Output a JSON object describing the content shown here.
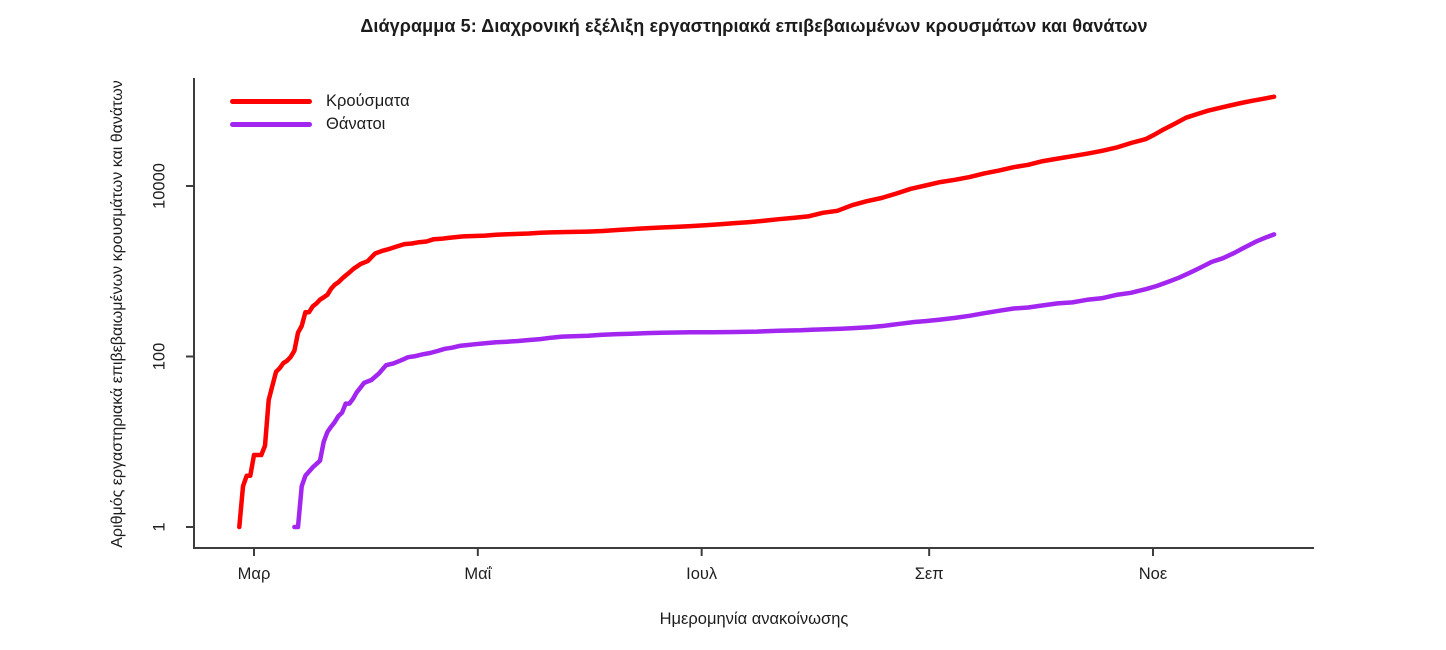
{
  "chart_data": {
    "type": "line",
    "title": "Διάγραμμα 5: Διαχρονική εξέλιξη εργαστηριακά επιβεβαιωμένων κρουσμάτων και θανάτων",
    "xlabel": "Ημερομηνία ανακοίνωσης",
    "ylabel": "Αριθμός εργαστηριακά επιβεβαιωμένων κρουσμάτων και θανάτων",
    "y_scale": "log10",
    "ylim": [
      1,
      200000
    ],
    "grid": false,
    "legend_position": "top-left",
    "x_ticks": [
      {
        "date": "03-01",
        "label": "Μαρ"
      },
      {
        "date": "05-01",
        "label": "Μαΐ"
      },
      {
        "date": "07-01",
        "label": "Ιουλ"
      },
      {
        "date": "09-01",
        "label": "Σεπ"
      },
      {
        "date": "11-01",
        "label": "Νοε"
      }
    ],
    "y_ticks": [
      {
        "value": 1,
        "label": "1"
      },
      {
        "value": 100,
        "label": "100"
      },
      {
        "value": 10000,
        "label": "10000"
      }
    ],
    "series": [
      {
        "id": "cases",
        "name": "Κρούσματα",
        "color": "#fe0000",
        "points": [
          [
            "02-26",
            1
          ],
          [
            "02-27",
            3
          ],
          [
            "02-28",
            4
          ],
          [
            "02-29",
            4
          ],
          [
            "03-01",
            7
          ],
          [
            "03-02",
            7
          ],
          [
            "03-03",
            7
          ],
          [
            "03-04",
            9
          ],
          [
            "03-05",
            31
          ],
          [
            "03-06",
            45
          ],
          [
            "03-07",
            66
          ],
          [
            "03-08",
            73
          ],
          [
            "03-09",
            84
          ],
          [
            "03-10",
            89
          ],
          [
            "03-11",
            99
          ],
          [
            "03-12",
            117
          ],
          [
            "03-13",
            190
          ],
          [
            "03-14",
            228
          ],
          [
            "03-15",
            331
          ],
          [
            "03-16",
            331
          ],
          [
            "03-17",
            387
          ],
          [
            "03-18",
            418
          ],
          [
            "03-19",
            464
          ],
          [
            "03-20",
            495
          ],
          [
            "03-21",
            530
          ],
          [
            "03-22",
            624
          ],
          [
            "03-23",
            695
          ],
          [
            "03-24",
            743
          ],
          [
            "03-25",
            821
          ],
          [
            "03-26",
            892
          ],
          [
            "03-27",
            966
          ],
          [
            "03-28",
            1061
          ],
          [
            "03-30",
            1212
          ],
          [
            "04-01",
            1314
          ],
          [
            "04-03",
            1613
          ],
          [
            "04-05",
            1735
          ],
          [
            "04-07",
            1832
          ],
          [
            "04-09",
            1955
          ],
          [
            "04-11",
            2081
          ],
          [
            "04-13",
            2114
          ],
          [
            "04-15",
            2192
          ],
          [
            "04-17",
            2235
          ],
          [
            "04-19",
            2374
          ],
          [
            "04-21",
            2401
          ],
          [
            "04-23",
            2463
          ],
          [
            "04-25",
            2517
          ],
          [
            "04-27",
            2566
          ],
          [
            "04-30",
            2591
          ],
          [
            "05-03",
            2620
          ],
          [
            "05-06",
            2678
          ],
          [
            "05-09",
            2710
          ],
          [
            "05-12",
            2744
          ],
          [
            "05-15",
            2770
          ],
          [
            "05-18",
            2834
          ],
          [
            "05-21",
            2853
          ],
          [
            "05-24",
            2876
          ],
          [
            "05-27",
            2892
          ],
          [
            "05-31",
            2915
          ],
          [
            "06-04",
            2967
          ],
          [
            "06-08",
            3049
          ],
          [
            "06-12",
            3121
          ],
          [
            "06-16",
            3203
          ],
          [
            "06-20",
            3256
          ],
          [
            "06-24",
            3310
          ],
          [
            "06-28",
            3390
          ],
          [
            "07-02",
            3458
          ],
          [
            "07-06",
            3562
          ],
          [
            "07-10",
            3672
          ],
          [
            "07-14",
            3772
          ],
          [
            "07-18",
            3910
          ],
          [
            "07-22",
            4077
          ],
          [
            "07-26",
            4227
          ],
          [
            "07-30",
            4401
          ],
          [
            "08-03",
            4855
          ],
          [
            "08-07",
            5123
          ],
          [
            "08-11",
            5947
          ],
          [
            "08-15",
            6632
          ],
          [
            "08-19",
            7222
          ],
          [
            "08-23",
            8138
          ],
          [
            "08-27",
            9280
          ],
          [
            "08-31",
            10134
          ],
          [
            "09-04",
            11124
          ],
          [
            "09-08",
            11832
          ],
          [
            "09-12",
            12734
          ],
          [
            "09-16",
            14041
          ],
          [
            "09-20",
            15142
          ],
          [
            "09-24",
            16627
          ],
          [
            "09-28",
            17707
          ],
          [
            "10-02",
            19613
          ],
          [
            "10-06",
            20947
          ],
          [
            "10-10",
            22358
          ],
          [
            "10-14",
            23947
          ],
          [
            "10-18",
            25802
          ],
          [
            "10-22",
            28216
          ],
          [
            "10-26",
            31939
          ],
          [
            "10-30",
            35510
          ],
          [
            "11-01",
            39251
          ],
          [
            "11-04",
            46400
          ],
          [
            "11-07",
            54000
          ],
          [
            "11-10",
            63300
          ],
          [
            "11-13",
            69700
          ],
          [
            "11-16",
            76400
          ],
          [
            "11-19",
            82000
          ],
          [
            "11-22",
            88000
          ],
          [
            "11-25",
            94000
          ],
          [
            "11-28",
            100000
          ],
          [
            "12-01",
            105271
          ],
          [
            "12-04",
            111537
          ]
        ]
      },
      {
        "id": "deaths",
        "name": "Θάνατοι",
        "color": "#a226f0",
        "points": [
          [
            "03-12",
            1
          ],
          [
            "03-13",
            1
          ],
          [
            "03-14",
            3
          ],
          [
            "03-15",
            4
          ],
          [
            "03-17",
            5
          ],
          [
            "03-19",
            6
          ],
          [
            "03-20",
            10
          ],
          [
            "03-21",
            13
          ],
          [
            "03-22",
            15
          ],
          [
            "03-23",
            17
          ],
          [
            "03-24",
            20
          ],
          [
            "03-25",
            22
          ],
          [
            "03-26",
            28
          ],
          [
            "03-27",
            28
          ],
          [
            "03-28",
            32
          ],
          [
            "03-29",
            38
          ],
          [
            "03-30",
            43
          ],
          [
            "03-31",
            49
          ],
          [
            "04-02",
            53
          ],
          [
            "04-04",
            63
          ],
          [
            "04-06",
            79
          ],
          [
            "04-08",
            83
          ],
          [
            "04-10",
            90
          ],
          [
            "04-12",
            98
          ],
          [
            "04-14",
            101
          ],
          [
            "04-16",
            106
          ],
          [
            "04-18",
            110
          ],
          [
            "04-20",
            116
          ],
          [
            "04-22",
            123
          ],
          [
            "04-24",
            127
          ],
          [
            "04-26",
            133
          ],
          [
            "04-28",
            136
          ],
          [
            "04-30",
            139
          ],
          [
            "05-03",
            143
          ],
          [
            "05-06",
            147
          ],
          [
            "05-09",
            149
          ],
          [
            "05-12",
            152
          ],
          [
            "05-15",
            156
          ],
          [
            "05-18",
            160
          ],
          [
            "05-21",
            166
          ],
          [
            "05-24",
            171
          ],
          [
            "05-27",
            173
          ],
          [
            "05-31",
            175
          ],
          [
            "06-04",
            180
          ],
          [
            "06-08",
            183
          ],
          [
            "06-12",
            185
          ],
          [
            "06-16",
            188
          ],
          [
            "06-20",
            190
          ],
          [
            "06-24",
            191
          ],
          [
            "06-28",
            192
          ],
          [
            "07-04",
            193
          ],
          [
            "07-10",
            194
          ],
          [
            "07-16",
            196
          ],
          [
            "07-22",
            201
          ],
          [
            "07-28",
            203
          ],
          [
            "07-31",
            206
          ],
          [
            "08-04",
            209
          ],
          [
            "08-08",
            212
          ],
          [
            "08-12",
            216
          ],
          [
            "08-16",
            221
          ],
          [
            "08-20",
            230
          ],
          [
            "08-24",
            242
          ],
          [
            "08-28",
            254
          ],
          [
            "08-31",
            260
          ],
          [
            "09-04",
            271
          ],
          [
            "09-08",
            284
          ],
          [
            "09-12",
            300
          ],
          [
            "09-16",
            322
          ],
          [
            "09-20",
            344
          ],
          [
            "09-24",
            366
          ],
          [
            "09-28",
            376
          ],
          [
            "10-02",
            398
          ],
          [
            "10-06",
            420
          ],
          [
            "10-10",
            431
          ],
          [
            "10-14",
            462
          ],
          [
            "10-18",
            482
          ],
          [
            "10-22",
            528
          ],
          [
            "10-26",
            559
          ],
          [
            "10-30",
            615
          ],
          [
            "11-02",
            672
          ],
          [
            "11-05",
            749
          ],
          [
            "11-08",
            838
          ],
          [
            "11-11",
            959
          ],
          [
            "11-14",
            1106
          ],
          [
            "11-17",
            1288
          ],
          [
            "11-20",
            1419
          ],
          [
            "11-23",
            1630
          ],
          [
            "11-26",
            1902
          ],
          [
            "11-29",
            2223
          ],
          [
            "12-02",
            2517
          ],
          [
            "12-04",
            2706
          ]
        ]
      }
    ]
  }
}
